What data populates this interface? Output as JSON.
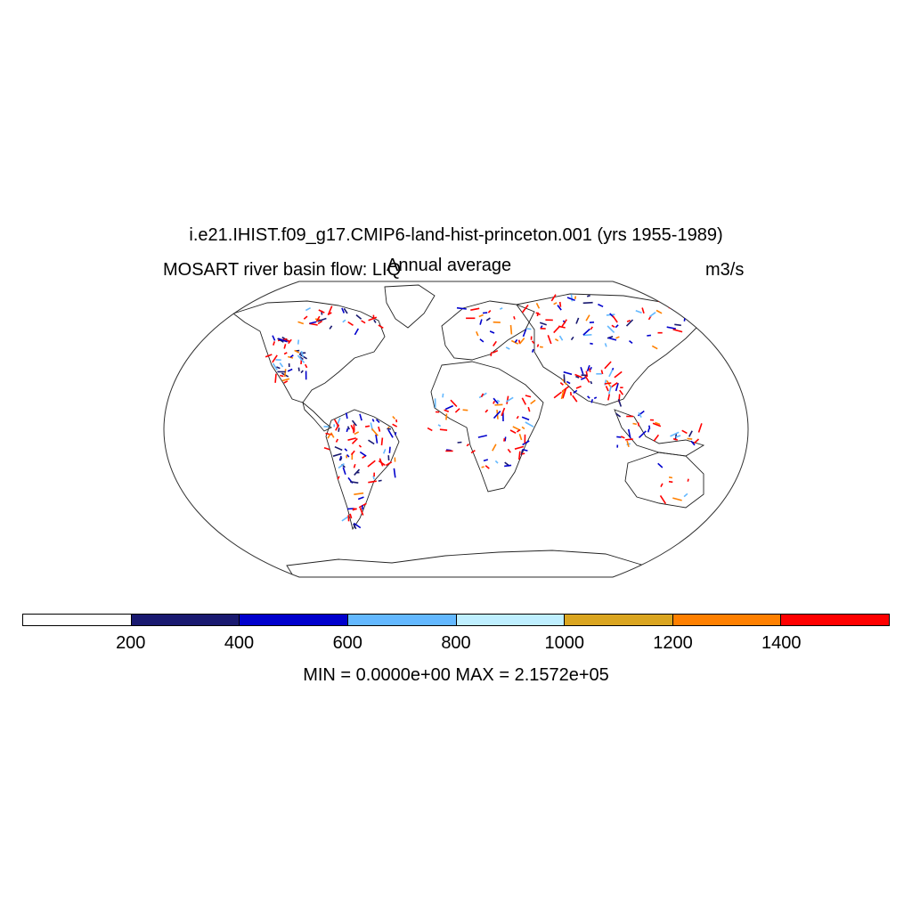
{
  "title": "i.e21.IHIST.f09_g17.CMIP6-land-hist-princeton.001 (yrs 1955-1989)",
  "left_label": "MOSART river basin flow: LIQ",
  "center_label": "Annual average",
  "units": "m3/s",
  "map": {
    "projection": "Robinson",
    "field": "river basin flow"
  },
  "colorbar": {
    "levels": [
      200,
      400,
      600,
      800,
      1000,
      1200,
      1400
    ],
    "tick_labels": [
      "200",
      "400",
      "600",
      "800",
      "1000",
      "1200",
      "1400"
    ],
    "colors": [
      "#ffffff",
      "#191970",
      "#0000cd",
      "#63b8ff",
      "#bfefff",
      "#daa520",
      "#ff8000",
      "#ff0000"
    ]
  },
  "minmax": "MIN = 0.0000e+00 MAX = 2.1572e+05"
}
